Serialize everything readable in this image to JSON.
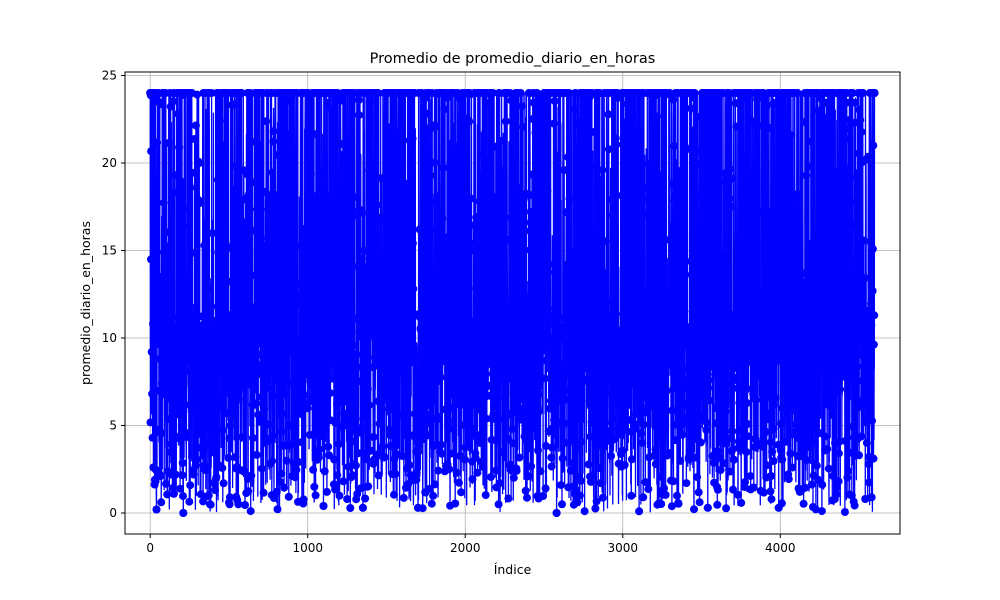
{
  "chart_data": {
    "type": "line",
    "title": "Promedio de promedio_diario_en_horas",
    "xlabel": "Índice",
    "ylabel": "promedio_diario_en_horas",
    "xlim": [
      -160,
      4760
    ],
    "ylim": [
      -1.2,
      25.2
    ],
    "x_ticks": [
      0,
      1000,
      2000,
      3000,
      4000
    ],
    "x_tick_labels": [
      "0",
      "1000",
      "2000",
      "3000",
      "4000"
    ],
    "y_ticks": [
      0,
      5,
      10,
      15,
      20,
      25
    ],
    "y_tick_labels": [
      "0",
      "5",
      "10",
      "15",
      "20",
      "25"
    ],
    "grid": true,
    "legend": "none",
    "series": [
      {
        "color": "#0000ff",
        "marker": "circle",
        "x_range": [
          0,
          4599
        ],
        "y_range": [
          0,
          24
        ],
        "n_points": 4600,
        "sample_values": [
          {
            "x": 0,
            "y": 24.0
          },
          {
            "x": 5,
            "y": 14.5
          },
          {
            "x": 10,
            "y": 9.2
          },
          {
            "x": 15,
            "y": 4.3
          },
          {
            "x": 20,
            "y": 2.6
          },
          {
            "x": 40,
            "y": 0.2
          },
          {
            "x": 150,
            "y": 1.1
          },
          {
            "x": 210,
            "y": 0.0
          },
          {
            "x": 380,
            "y": 0.5
          },
          {
            "x": 560,
            "y": 0.5
          },
          {
            "x": 1100,
            "y": 0.4
          },
          {
            "x": 1350,
            "y": 0.3
          },
          {
            "x": 1700,
            "y": 0.3
          },
          {
            "x": 2580,
            "y": 0.0
          },
          {
            "x": 3540,
            "y": 0.3
          },
          {
            "x": 3990,
            "y": 0.3
          },
          {
            "x": 4540,
            "y": 0.8
          },
          {
            "x": 4580,
            "y": 0.9
          },
          {
            "x": 4590,
            "y": 21.0
          },
          {
            "x": 4599,
            "y": 24.0
          }
        ]
      }
    ]
  }
}
